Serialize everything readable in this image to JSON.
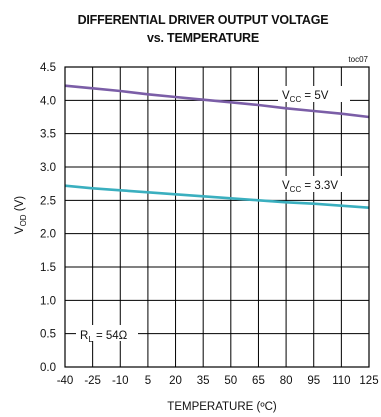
{
  "chart_data": {
    "type": "line",
    "title": [
      "DIFFERENTIAL DRIVER OUTPUT VOLTAGE",
      "vs. TEMPERATURE"
    ],
    "code": "toc07",
    "xlabel": "TEMPERATURE (ºC)",
    "ylabel": {
      "main": "V",
      "sub": "OD",
      "rest": " (V)"
    },
    "xlim": [
      -40,
      125
    ],
    "ylim": [
      0,
      4.5
    ],
    "xticks": [
      -40,
      -25,
      -10,
      5,
      20,
      35,
      50,
      65,
      80,
      95,
      110,
      125
    ],
    "yticks": [
      "0.0",
      "0.5",
      "1.0",
      "1.5",
      "2.0",
      "2.5",
      "3.0",
      "3.5",
      "4.0",
      "4.5"
    ],
    "grid": true,
    "series": [
      {
        "name": {
          "main": "V",
          "sub": "CC",
          "rest": " = 5V"
        },
        "color": "#7B5EA7",
        "x": [
          -40,
          -25,
          -10,
          5,
          20,
          35,
          50,
          65,
          80,
          95,
          110,
          125
        ],
        "y": [
          4.22,
          4.18,
          4.14,
          4.09,
          4.05,
          4.01,
          3.97,
          3.93,
          3.88,
          3.84,
          3.8,
          3.75
        ]
      },
      {
        "name": {
          "main": "V",
          "sub": "CC",
          "rest": " = 3.3V"
        },
        "color": "#3AAFBF",
        "x": [
          -40,
          -25,
          -10,
          5,
          20,
          35,
          50,
          65,
          80,
          95,
          110,
          125
        ],
        "y": [
          2.72,
          2.68,
          2.65,
          2.62,
          2.59,
          2.56,
          2.53,
          2.5,
          2.47,
          2.45,
          2.42,
          2.39
        ]
      }
    ],
    "annotation": {
      "main": "R",
      "sub": "L",
      "rest": " = 54Ω"
    }
  }
}
